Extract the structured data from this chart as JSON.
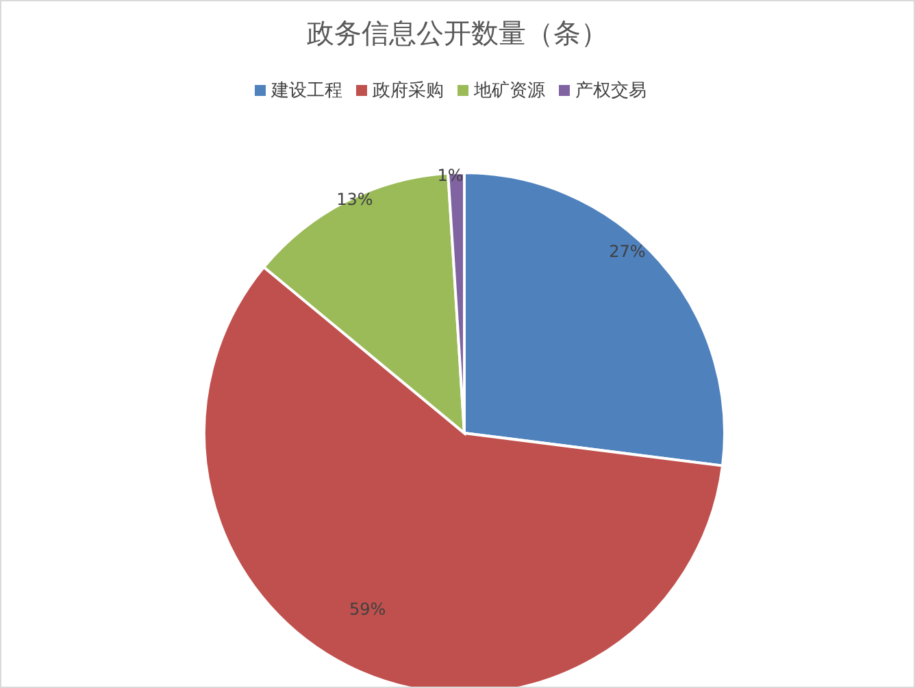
{
  "chart_data": {
    "type": "pie",
    "title": "政务信息公开数量（条）",
    "categories": [
      "建设工程",
      "政府采购",
      "地矿资源",
      "产权交易"
    ],
    "values": [
      27,
      59,
      13,
      1
    ],
    "value_labels": [
      "27%",
      "59%",
      "13%",
      "1%"
    ],
    "colors": [
      "#4f81bd",
      "#c0504d",
      "#9bbb59",
      "#8064a2"
    ],
    "legend": "top"
  }
}
